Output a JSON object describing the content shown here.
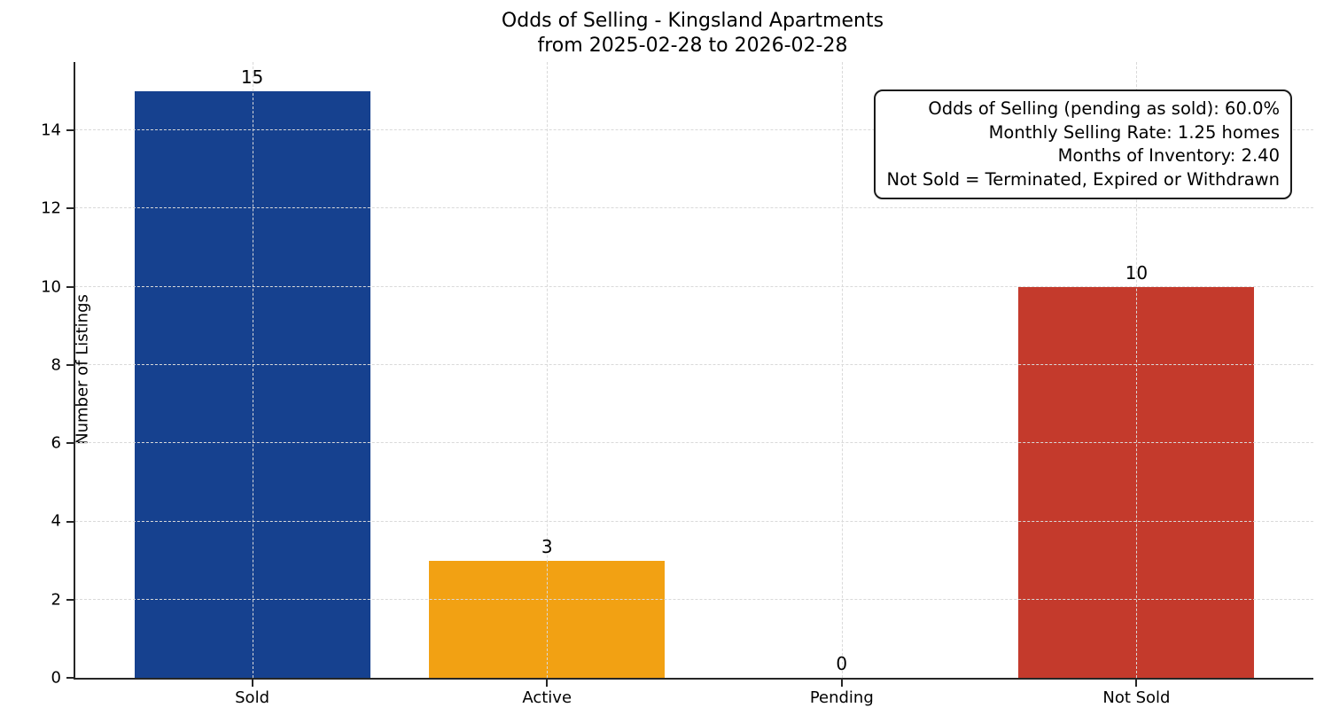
{
  "figure": {
    "background": "#ffffff"
  },
  "chart_data": {
    "type": "bar",
    "title": "Odds of Selling - Kingsland Apartments",
    "subtitle": "from 2025-02-28 to 2026-02-28",
    "categories": [
      "Sold",
      "Active",
      "Pending",
      "Not Sold"
    ],
    "values": [
      15,
      3,
      0,
      10
    ],
    "value_labels": [
      "15",
      "3",
      "0",
      "10"
    ],
    "bar_colors": [
      "#16418f",
      "#f2a113",
      null,
      "#c43a2c"
    ],
    "xlabel": "",
    "ylabel": "Number of Listings",
    "ylim": [
      0,
      15.75
    ],
    "yticks": [
      0,
      2,
      4,
      6,
      8,
      10,
      12,
      14
    ],
    "grid": true,
    "grid_style": "dashed",
    "grid_color": "#d9d9d9",
    "axis_color": "#262626",
    "annotation": {
      "lines": [
        "Odds of Selling (pending as sold): 60.0%",
        "Monthly Selling Rate: 1.25 homes",
        "Months of Inventory: 2.40",
        "Not Sold = Terminated, Expired or Withdrawn"
      ],
      "align": "right",
      "position": "top-right"
    }
  }
}
